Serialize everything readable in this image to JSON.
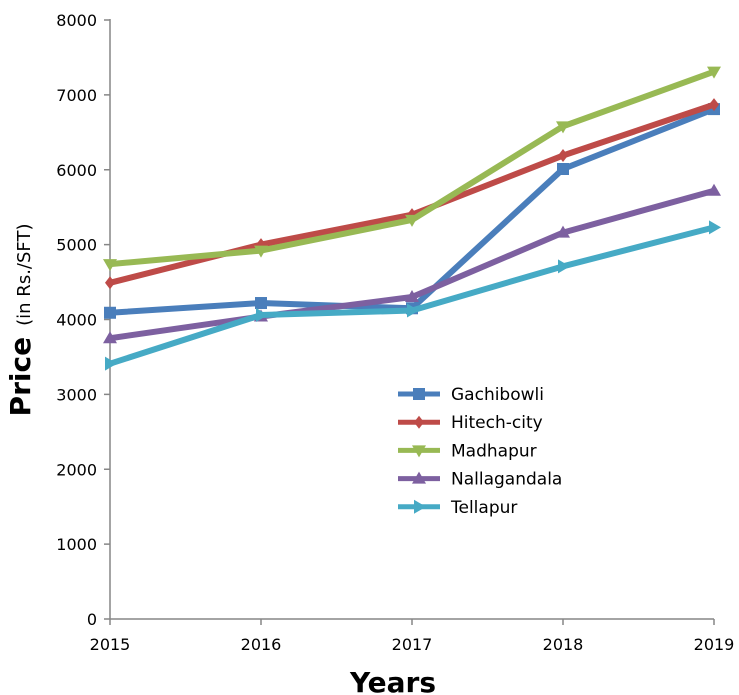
{
  "chart_data": {
    "type": "line",
    "xlabel": "Years",
    "ylabel": "Price",
    "ylabel_unit": "(in Rs./SFT)",
    "x": [
      "2015",
      "2016",
      "2017",
      "2018",
      "2019"
    ],
    "ylim": [
      0,
      8000
    ],
    "yticks": [
      "0",
      "1000",
      "2000",
      "3000",
      "4000",
      "5000",
      "6000",
      "7000",
      "8000"
    ],
    "grid": false,
    "legend_position": "center-right",
    "series": [
      {
        "name": "Gachibowli",
        "color": "#4a7ebb",
        "marker": "square",
        "values": [
          4090,
          4220,
          4150,
          6010,
          6810
        ]
      },
      {
        "name": "Hitech-city",
        "color": "#be4b48",
        "marker": "diamond",
        "values": [
          4490,
          5000,
          5400,
          6190,
          6870
        ]
      },
      {
        "name": "Madhapur",
        "color": "#98b954",
        "marker": "triangle-down",
        "values": [
          4740,
          4920,
          5330,
          6580,
          7310
        ]
      },
      {
        "name": "Nallagandala",
        "color": "#7d60a0",
        "marker": "triangle-up",
        "values": [
          3750,
          4040,
          4300,
          5160,
          5720
        ]
      },
      {
        "name": "Tellapur",
        "color": "#46aac5",
        "marker": "triangle-right",
        "values": [
          3410,
          4060,
          4120,
          4710,
          5230
        ]
      }
    ]
  }
}
